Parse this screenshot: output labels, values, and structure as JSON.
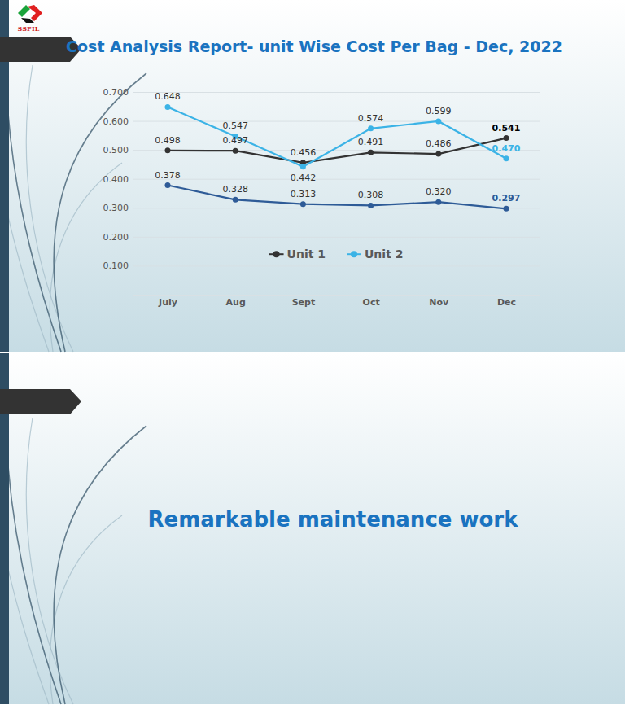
{
  "logo": {
    "text": "SSPIL"
  },
  "chart_data": {
    "type": "line",
    "title": "Cost Analysis Report- unit Wise Cost Per Bag - Dec, 2022",
    "categories": [
      "July",
      "Aug",
      "Sept",
      "Oct",
      "Nov",
      "Dec"
    ],
    "series": [
      {
        "name": "Unit 1",
        "color": "#333333",
        "marker": "circle",
        "values": [
          0.498,
          0.497,
          0.456,
          0.491,
          0.486,
          0.541
        ],
        "value_labels": [
          "0.498",
          "0.497",
          "0.456",
          "0.491",
          "0.486",
          "0.541"
        ]
      },
      {
        "name": "Unit 2",
        "color": "#3bb3e6",
        "marker": "circle",
        "values": [
          0.648,
          0.547,
          0.442,
          0.574,
          0.599,
          0.47
        ],
        "value_labels": [
          "0.648",
          "0.547",
          "0.442",
          "0.574",
          "0.599",
          "0.470"
        ]
      },
      {
        "color": "#2e5b97",
        "marker": "circle",
        "values": [
          0.378,
          0.328,
          0.313,
          0.308,
          0.32,
          0.297
        ],
        "value_labels": [
          "0.378",
          "0.328",
          "0.313",
          "0.308",
          "0.320",
          "0.297"
        ]
      }
    ],
    "ylim": [
      0,
      0.7
    ],
    "yticks": [
      {
        "value": 0,
        "label": "-"
      },
      {
        "value": 0.1,
        "label": "0.100"
      },
      {
        "value": 0.2,
        "label": "0.200"
      },
      {
        "value": 0.3,
        "label": "0.300"
      },
      {
        "value": 0.4,
        "label": "0.400"
      },
      {
        "value": 0.5,
        "label": "0.500"
      },
      {
        "value": 0.6,
        "label": "0.600"
      },
      {
        "value": 0.7,
        "label": "0.700"
      }
    ],
    "grid": true,
    "legend": "bottom",
    "data_labels": true
  },
  "slide2": {
    "title": "Remarkable maintenance work"
  }
}
